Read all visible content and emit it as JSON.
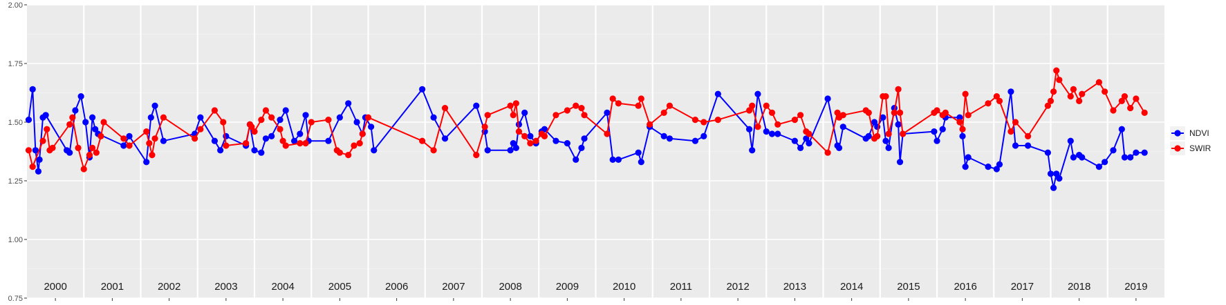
{
  "chart_data": {
    "type": "line",
    "title": "",
    "xlabel": "",
    "ylabel": "",
    "xlim": [
      2000.0,
      2020.0
    ],
    "ylim": [
      0.75,
      2.0
    ],
    "y_ticks": [
      0.75,
      1.0,
      1.25,
      1.5,
      1.75,
      2.0
    ],
    "y_tick_labels": [
      "0.75",
      "1.00",
      "1.25",
      "1.50",
      "1.75",
      "2.00"
    ],
    "year_labels": [
      "2000",
      "2001",
      "2002",
      "2003",
      "2004",
      "2005",
      "2006",
      "2007",
      "2008",
      "2009",
      "2010",
      "2011",
      "2012",
      "2013",
      "2014",
      "2015",
      "2016",
      "2017",
      "2018",
      "2019"
    ],
    "grid": true,
    "legend_position": "right",
    "series": [
      {
        "name": "NDVI",
        "color": "#0000ff",
        "points": [
          [
            2000.03,
            1.51
          ],
          [
            2000.1,
            1.64
          ],
          [
            2000.15,
            1.38
          ],
          [
            2000.2,
            1.29
          ],
          [
            2000.22,
            1.34
          ],
          [
            2000.28,
            1.52
          ],
          [
            2000.33,
            1.53
          ],
          [
            2000.7,
            1.38
          ],
          [
            2000.75,
            1.37
          ],
          [
            2000.85,
            1.55
          ],
          [
            2000.95,
            1.61
          ],
          [
            2001.03,
            1.5
          ],
          [
            2001.1,
            1.35
          ],
          [
            2001.15,
            1.52
          ],
          [
            2001.2,
            1.47
          ],
          [
            2001.25,
            1.45
          ],
          [
            2001.7,
            1.4
          ],
          [
            2001.8,
            1.44
          ],
          [
            2002.1,
            1.33
          ],
          [
            2002.18,
            1.52
          ],
          [
            2002.25,
            1.57
          ],
          [
            2002.4,
            1.42
          ],
          [
            2002.95,
            1.45
          ],
          [
            2003.05,
            1.52
          ],
          [
            2003.3,
            1.42
          ],
          [
            2003.4,
            1.38
          ],
          [
            2003.5,
            1.44
          ],
          [
            2003.85,
            1.4
          ],
          [
            2003.92,
            1.49
          ],
          [
            2004.0,
            1.38
          ],
          [
            2004.12,
            1.37
          ],
          [
            2004.2,
            1.43
          ],
          [
            2004.3,
            1.44
          ],
          [
            2004.45,
            1.51
          ],
          [
            2004.55,
            1.55
          ],
          [
            2004.7,
            1.42
          ],
          [
            2004.8,
            1.45
          ],
          [
            2004.9,
            1.53
          ],
          [
            2004.95,
            1.42
          ],
          [
            2005.3,
            1.42
          ],
          [
            2005.5,
            1.52
          ],
          [
            2005.65,
            1.58
          ],
          [
            2005.8,
            1.5
          ],
          [
            2005.9,
            1.45
          ],
          [
            2005.95,
            1.52
          ],
          [
            2006.05,
            1.48
          ],
          [
            2006.1,
            1.38
          ],
          [
            2006.95,
            1.64
          ],
          [
            2007.15,
            1.52
          ],
          [
            2007.35,
            1.43
          ],
          [
            2007.9,
            1.57
          ],
          [
            2008.05,
            1.46
          ],
          [
            2008.1,
            1.38
          ],
          [
            2008.5,
            1.38
          ],
          [
            2008.55,
            1.41
          ],
          [
            2008.6,
            1.39
          ],
          [
            2008.65,
            1.49
          ],
          [
            2008.75,
            1.54
          ],
          [
            2008.85,
            1.44
          ],
          [
            2008.95,
            1.41
          ],
          [
            2009.05,
            1.46
          ],
          [
            2009.1,
            1.47
          ],
          [
            2009.3,
            1.42
          ],
          [
            2009.5,
            1.41
          ],
          [
            2009.65,
            1.34
          ],
          [
            2009.75,
            1.39
          ],
          [
            2009.8,
            1.43
          ],
          [
            2010.2,
            1.54
          ],
          [
            2010.3,
            1.34
          ],
          [
            2010.4,
            1.34
          ],
          [
            2010.75,
            1.37
          ],
          [
            2010.8,
            1.33
          ],
          [
            2010.95,
            1.48
          ],
          [
            2011.2,
            1.44
          ],
          [
            2011.3,
            1.43
          ],
          [
            2011.75,
            1.42
          ],
          [
            2011.9,
            1.44
          ],
          [
            2012.15,
            1.62
          ],
          [
            2012.7,
            1.47
          ],
          [
            2012.75,
            1.38
          ],
          [
            2012.85,
            1.62
          ],
          [
            2013.0,
            1.46
          ],
          [
            2013.1,
            1.45
          ],
          [
            2013.2,
            1.45
          ],
          [
            2013.5,
            1.42
          ],
          [
            2013.6,
            1.39
          ],
          [
            2013.7,
            1.43
          ],
          [
            2013.75,
            1.41
          ],
          [
            2014.08,
            1.6
          ],
          [
            2014.25,
            1.4
          ],
          [
            2014.28,
            1.39
          ],
          [
            2014.35,
            1.48
          ],
          [
            2014.75,
            1.43
          ],
          [
            2014.8,
            1.44
          ],
          [
            2014.9,
            1.5
          ],
          [
            2014.95,
            1.48
          ],
          [
            2015.05,
            1.52
          ],
          [
            2015.1,
            1.42
          ],
          [
            2015.15,
            1.39
          ],
          [
            2015.25,
            1.56
          ],
          [
            2015.32,
            1.49
          ],
          [
            2015.35,
            1.33
          ],
          [
            2015.4,
            1.45
          ],
          [
            2015.95,
            1.46
          ],
          [
            2016.0,
            1.42
          ],
          [
            2016.1,
            1.47
          ],
          [
            2016.15,
            1.52
          ],
          [
            2016.4,
            1.52
          ],
          [
            2016.45,
            1.44
          ],
          [
            2016.5,
            1.31
          ],
          [
            2016.55,
            1.35
          ],
          [
            2016.9,
            1.31
          ],
          [
            2017.05,
            1.3
          ],
          [
            2017.1,
            1.32
          ],
          [
            2017.3,
            1.63
          ],
          [
            2017.38,
            1.4
          ],
          [
            2017.6,
            1.4
          ],
          [
            2017.95,
            1.37
          ],
          [
            2018.0,
            1.28
          ],
          [
            2018.05,
            1.22
          ],
          [
            2018.1,
            1.28
          ],
          [
            2018.15,
            1.26
          ],
          [
            2018.35,
            1.42
          ],
          [
            2018.4,
            1.35
          ],
          [
            2018.5,
            1.36
          ],
          [
            2018.55,
            1.35
          ],
          [
            2018.85,
            1.31
          ],
          [
            2018.95,
            1.33
          ],
          [
            2019.1,
            1.38
          ],
          [
            2019.25,
            1.47
          ],
          [
            2019.3,
            1.35
          ],
          [
            2019.4,
            1.35
          ],
          [
            2019.5,
            1.37
          ],
          [
            2019.65,
            1.37
          ]
        ]
      },
      {
        "name": "SWIR",
        "color": "#ff0000",
        "points": [
          [
            2000.03,
            1.38
          ],
          [
            2000.1,
            1.31
          ],
          [
            2000.28,
            1.42
          ],
          [
            2000.35,
            1.47
          ],
          [
            2000.4,
            1.38
          ],
          [
            2000.45,
            1.39
          ],
          [
            2000.75,
            1.49
          ],
          [
            2000.8,
            1.52
          ],
          [
            2000.9,
            1.39
          ],
          [
            2001.0,
            1.3
          ],
          [
            2001.1,
            1.36
          ],
          [
            2001.15,
            1.39
          ],
          [
            2001.22,
            1.37
          ],
          [
            2001.3,
            1.44
          ],
          [
            2001.35,
            1.5
          ],
          [
            2001.7,
            1.43
          ],
          [
            2001.8,
            1.4
          ],
          [
            2002.1,
            1.46
          ],
          [
            2002.15,
            1.41
          ],
          [
            2002.2,
            1.36
          ],
          [
            2002.25,
            1.43
          ],
          [
            2002.4,
            1.52
          ],
          [
            2002.95,
            1.43
          ],
          [
            2003.05,
            1.47
          ],
          [
            2003.3,
            1.55
          ],
          [
            2003.45,
            1.5
          ],
          [
            2003.5,
            1.4
          ],
          [
            2003.85,
            1.41
          ],
          [
            2003.92,
            1.49
          ],
          [
            2003.95,
            1.48
          ],
          [
            2004.0,
            1.46
          ],
          [
            2004.12,
            1.51
          ],
          [
            2004.2,
            1.55
          ],
          [
            2004.3,
            1.52
          ],
          [
            2004.45,
            1.47
          ],
          [
            2004.5,
            1.42
          ],
          [
            2004.55,
            1.4
          ],
          [
            2004.8,
            1.41
          ],
          [
            2004.9,
            1.41
          ],
          [
            2005.0,
            1.5
          ],
          [
            2005.3,
            1.51
          ],
          [
            2005.45,
            1.38
          ],
          [
            2005.5,
            1.37
          ],
          [
            2005.65,
            1.36
          ],
          [
            2005.75,
            1.4
          ],
          [
            2005.85,
            1.41
          ],
          [
            2005.9,
            1.45
          ],
          [
            2006.0,
            1.52
          ],
          [
            2006.95,
            1.42
          ],
          [
            2007.15,
            1.38
          ],
          [
            2007.35,
            1.56
          ],
          [
            2007.9,
            1.36
          ],
          [
            2008.05,
            1.48
          ],
          [
            2008.1,
            1.53
          ],
          [
            2008.5,
            1.57
          ],
          [
            2008.55,
            1.53
          ],
          [
            2008.6,
            1.58
          ],
          [
            2008.65,
            1.46
          ],
          [
            2008.75,
            1.44
          ],
          [
            2008.85,
            1.41
          ],
          [
            2008.95,
            1.42
          ],
          [
            2009.05,
            1.45
          ],
          [
            2009.1,
            1.44
          ],
          [
            2009.3,
            1.53
          ],
          [
            2009.5,
            1.55
          ],
          [
            2009.65,
            1.57
          ],
          [
            2009.75,
            1.56
          ],
          [
            2009.8,
            1.53
          ],
          [
            2010.2,
            1.45
          ],
          [
            2010.3,
            1.6
          ],
          [
            2010.4,
            1.58
          ],
          [
            2010.75,
            1.57
          ],
          [
            2010.8,
            1.6
          ],
          [
            2010.95,
            1.49
          ],
          [
            2011.2,
            1.54
          ],
          [
            2011.3,
            1.57
          ],
          [
            2011.75,
            1.51
          ],
          [
            2011.9,
            1.5
          ],
          [
            2012.15,
            1.51
          ],
          [
            2012.7,
            1.55
          ],
          [
            2012.75,
            1.57
          ],
          [
            2012.85,
            1.48
          ],
          [
            2013.0,
            1.57
          ],
          [
            2013.1,
            1.54
          ],
          [
            2013.2,
            1.49
          ],
          [
            2013.5,
            1.51
          ],
          [
            2013.6,
            1.53
          ],
          [
            2013.7,
            1.46
          ],
          [
            2013.75,
            1.45
          ],
          [
            2014.08,
            1.37
          ],
          [
            2014.25,
            1.54
          ],
          [
            2014.28,
            1.52
          ],
          [
            2014.35,
            1.53
          ],
          [
            2014.75,
            1.55
          ],
          [
            2014.8,
            1.54
          ],
          [
            2014.9,
            1.43
          ],
          [
            2014.95,
            1.44
          ],
          [
            2015.05,
            1.61
          ],
          [
            2015.1,
            1.61
          ],
          [
            2015.15,
            1.45
          ],
          [
            2015.25,
            1.54
          ],
          [
            2015.32,
            1.64
          ],
          [
            2015.35,
            1.54
          ],
          [
            2015.4,
            1.45
          ],
          [
            2015.95,
            1.54
          ],
          [
            2016.0,
            1.55
          ],
          [
            2016.1,
            1.53
          ],
          [
            2016.15,
            1.54
          ],
          [
            2016.4,
            1.5
          ],
          [
            2016.45,
            1.47
          ],
          [
            2016.5,
            1.62
          ],
          [
            2016.55,
            1.53
          ],
          [
            2016.9,
            1.58
          ],
          [
            2017.05,
            1.61
          ],
          [
            2017.1,
            1.59
          ],
          [
            2017.3,
            1.46
          ],
          [
            2017.38,
            1.5
          ],
          [
            2017.6,
            1.44
          ],
          [
            2017.95,
            1.57
          ],
          [
            2018.0,
            1.59
          ],
          [
            2018.05,
            1.63
          ],
          [
            2018.1,
            1.72
          ],
          [
            2018.15,
            1.68
          ],
          [
            2018.35,
            1.61
          ],
          [
            2018.4,
            1.64
          ],
          [
            2018.5,
            1.59
          ],
          [
            2018.55,
            1.62
          ],
          [
            2018.85,
            1.67
          ],
          [
            2018.95,
            1.63
          ],
          [
            2019.1,
            1.55
          ],
          [
            2019.25,
            1.59
          ],
          [
            2019.3,
            1.61
          ],
          [
            2019.4,
            1.56
          ],
          [
            2019.5,
            1.6
          ],
          [
            2019.65,
            1.54
          ]
        ]
      }
    ]
  }
}
